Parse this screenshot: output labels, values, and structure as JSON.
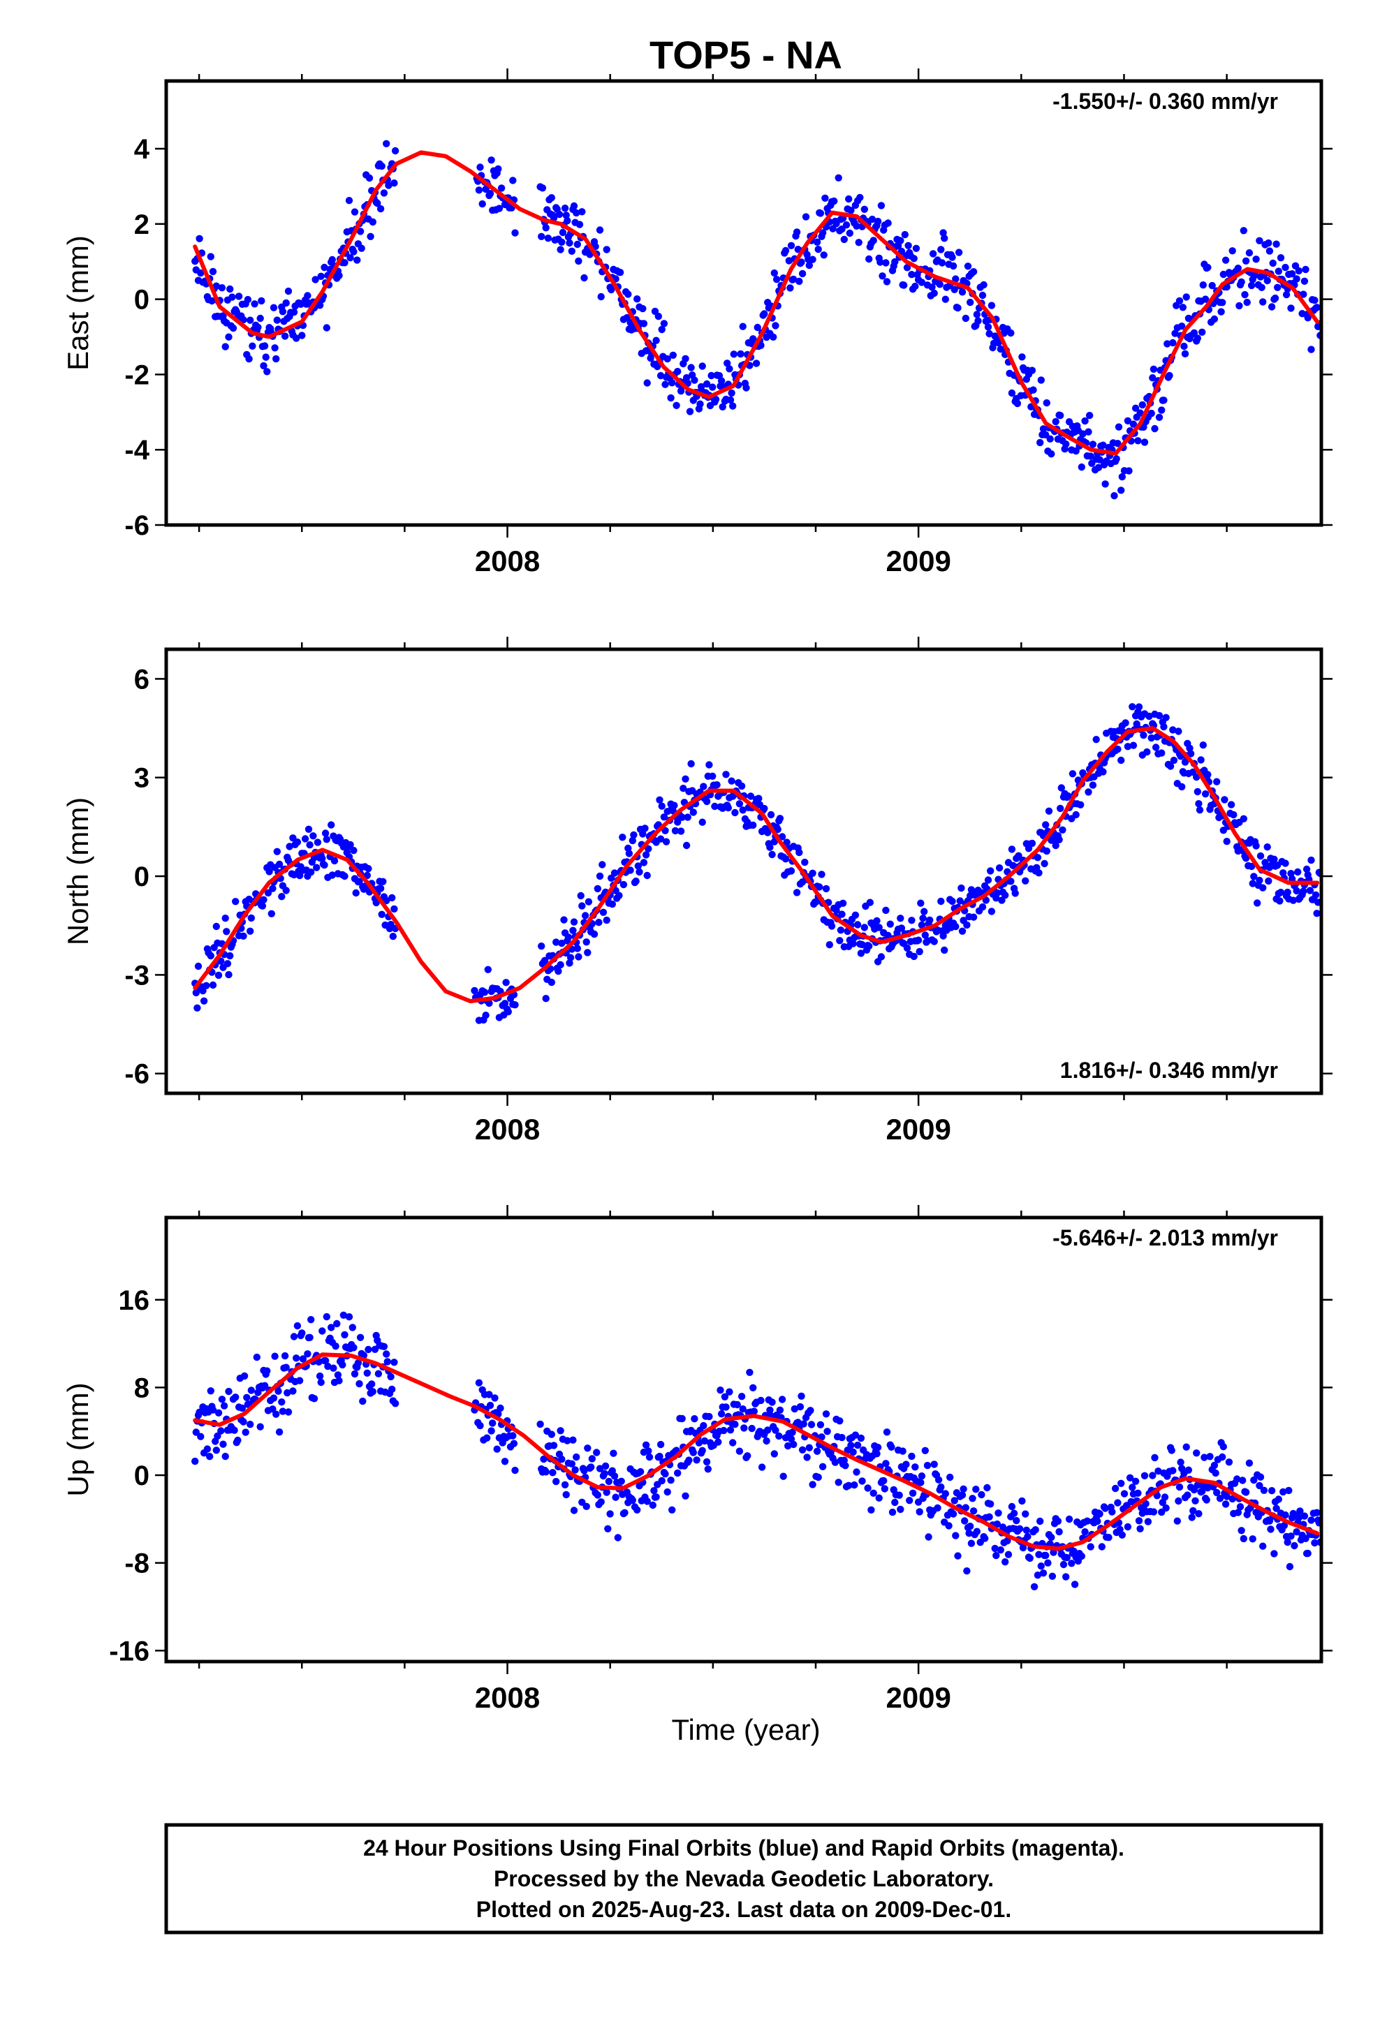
{
  "title": "TOP5 - NA",
  "footer": {
    "lines": [
      "24 Hour Positions Using Final Orbits (blue) and Rapid Orbits (magenta).",
      "Processed by the Nevada Geodetic Laboratory.",
      "Plotted on 2025-Aug-23. Last data on 2009-Dec-01."
    ]
  },
  "colors": {
    "final_orbits": "#0000ff",
    "rapid_orbits": "#ff00ff",
    "model_fit": "#ff0000"
  },
  "chart_data": [
    {
      "type": "scatter",
      "component": "east",
      "ylabel": "East (mm)",
      "xlabel": "",
      "xlim": [
        2007.17,
        2009.98
      ],
      "ylim": [
        -6,
        5.8
      ],
      "x_ticks": [
        2008,
        2009
      ],
      "x_tick_labels": [
        "2008",
        "2009"
      ],
      "y_ticks": [
        -6,
        -4,
        -2,
        0,
        2,
        4
      ],
      "y_tick_labels": [
        "-6",
        "-4",
        "-2",
        "0",
        "2",
        "4"
      ],
      "rate_label": "-1.550+/- 0.360 mm/yr",
      "rate_label_position": "top-right",
      "fit": {
        "name": "",
        "x": [
          2007.24,
          2007.3,
          2007.38,
          2007.42,
          2007.5,
          2007.55,
          2007.62,
          2007.68,
          2007.73,
          2007.79,
          2007.85,
          2007.91,
          2007.97,
          2008.03,
          2008.09,
          2008.13,
          2008.19,
          2008.26,
          2008.32,
          2008.38,
          2008.44,
          2008.49,
          2008.55,
          2008.62,
          2008.69,
          2008.73,
          2008.79,
          2008.85,
          2008.91,
          2008.97,
          2009.04,
          2009.12,
          2009.18,
          2009.25,
          2009.31,
          2009.37,
          2009.42,
          2009.48,
          2009.54,
          2009.6,
          2009.65,
          2009.7,
          2009.74,
          2009.8,
          2009.85,
          2009.91,
          2009.97
        ],
        "y": [
          1.4,
          -0.2,
          -0.9,
          -1.0,
          -0.6,
          0.2,
          1.6,
          2.9,
          3.6,
          3.9,
          3.8,
          3.4,
          2.9,
          2.4,
          2.1,
          2.0,
          1.6,
          0.4,
          -0.8,
          -1.8,
          -2.4,
          -2.6,
          -2.3,
          -0.9,
          0.8,
          1.5,
          2.3,
          2.2,
          1.6,
          1.0,
          0.6,
          0.3,
          -0.5,
          -2.2,
          -3.3,
          -3.7,
          -4.0,
          -4.1,
          -3.3,
          -1.9,
          -0.8,
          -0.2,
          0.4,
          0.8,
          0.7,
          0.3,
          -0.6
        ]
      },
      "scatter_model": {
        "segments": [
          [
            2007.24,
            2007.73
          ],
          [
            2007.92,
            2008.02
          ],
          [
            2008.08,
            2009.98
          ]
        ],
        "noise_mm": 0.85,
        "seed": 11
      }
    },
    {
      "type": "scatter",
      "component": "north",
      "ylabel": "North (mm)",
      "xlabel": "",
      "xlim": [
        2007.17,
        2009.98
      ],
      "ylim": [
        -6.6,
        6.9
      ],
      "x_ticks": [
        2008,
        2009
      ],
      "x_tick_labels": [
        "2008",
        "2009"
      ],
      "y_ticks": [
        -6,
        -3,
        0,
        3,
        6
      ],
      "y_tick_labels": [
        "-6",
        "-3",
        "0",
        "3",
        "6"
      ],
      "rate_label": "1.816+/- 0.346 mm/yr",
      "rate_label_position": "bottom-right",
      "fit": {
        "name": "",
        "x": [
          2007.24,
          2007.3,
          2007.36,
          2007.42,
          2007.49,
          2007.55,
          2007.61,
          2007.66,
          2007.73,
          2007.79,
          2007.85,
          2007.91,
          2007.97,
          2008.03,
          2008.09,
          2008.16,
          2008.22,
          2008.29,
          2008.36,
          2008.42,
          2008.49,
          2008.55,
          2008.62,
          2008.66,
          2008.72,
          2008.79,
          2008.86,
          2008.91,
          2008.97,
          2009.04,
          2009.1,
          2009.16,
          2009.22,
          2009.29,
          2009.35,
          2009.4,
          2009.46,
          2009.51,
          2009.57,
          2009.62,
          2009.67,
          2009.72,
          2009.77,
          2009.83,
          2009.9,
          2009.97
        ],
        "y": [
          -3.4,
          -2.4,
          -1.2,
          -0.2,
          0.5,
          0.8,
          0.5,
          -0.2,
          -1.4,
          -2.6,
          -3.5,
          -3.8,
          -3.7,
          -3.4,
          -2.8,
          -2.0,
          -1.0,
          0.3,
          1.3,
          2.0,
          2.6,
          2.6,
          1.9,
          1.1,
          0.1,
          -1.2,
          -1.8,
          -2.0,
          -1.8,
          -1.5,
          -1.0,
          -0.6,
          0.0,
          0.8,
          1.8,
          2.9,
          3.8,
          4.4,
          4.5,
          4.1,
          3.4,
          2.4,
          1.3,
          0.2,
          -0.2,
          -0.2
        ]
      },
      "scatter_model": {
        "segments": [
          [
            2007.24,
            2007.73
          ],
          [
            2007.92,
            2008.02
          ],
          [
            2008.08,
            2009.98
          ]
        ],
        "noise_mm": 0.85,
        "seed": 23
      }
    },
    {
      "type": "scatter",
      "component": "up",
      "ylabel": "Up (mm)",
      "xlabel": "Time (year)",
      "xlim": [
        2007.17,
        2009.98
      ],
      "ylim": [
        -17,
        23.5
      ],
      "x_ticks": [
        2008,
        2009
      ],
      "x_tick_labels": [
        "2008",
        "2009"
      ],
      "y_ticks": [
        -16,
        -8,
        0,
        8,
        16
      ],
      "y_tick_labels": [
        "-16",
        "-8",
        "0",
        "8",
        "16"
      ],
      "rate_label": "-5.646+/- 2.013 mm/yr",
      "rate_label_position": "top-right",
      "fit": {
        "name": "",
        "x": [
          2007.24,
          2007.3,
          2007.36,
          2007.42,
          2007.49,
          2007.55,
          2007.62,
          2007.68,
          2007.74,
          2007.8,
          2007.86,
          2007.92,
          2007.98,
          2008.04,
          2008.1,
          2008.16,
          2008.22,
          2008.28,
          2008.34,
          2008.41,
          2008.47,
          2008.53,
          2008.6,
          2008.67,
          2008.73,
          2008.79,
          2008.85,
          2008.91,
          2008.97,
          2009.03,
          2009.09,
          2009.16,
          2009.22,
          2009.28,
          2009.34,
          2009.4,
          2009.46,
          2009.53,
          2009.59,
          2009.65,
          2009.72,
          2009.78,
          2009.84,
          2009.9,
          2009.97
        ],
        "y": [
          5.0,
          4.6,
          5.6,
          7.6,
          9.8,
          11.0,
          10.9,
          10.2,
          9.2,
          8.2,
          7.2,
          6.3,
          5.1,
          3.6,
          1.7,
          0.0,
          -1.1,
          -1.2,
          -0.1,
          1.7,
          3.7,
          5.1,
          5.4,
          4.9,
          3.7,
          2.5,
          1.4,
          0.4,
          -0.6,
          -1.7,
          -3.0,
          -4.3,
          -5.6,
          -6.5,
          -6.7,
          -6.1,
          -4.6,
          -2.7,
          -1.1,
          -0.3,
          -0.7,
          -2.0,
          -3.2,
          -4.3,
          -5.3
        ]
      },
      "scatter_model": {
        "segments": [
          [
            2007.24,
            2007.73
          ],
          [
            2007.92,
            2008.02
          ],
          [
            2008.08,
            2009.98
          ]
        ],
        "noise_mm": 3.4,
        "seed": 37
      }
    }
  ]
}
